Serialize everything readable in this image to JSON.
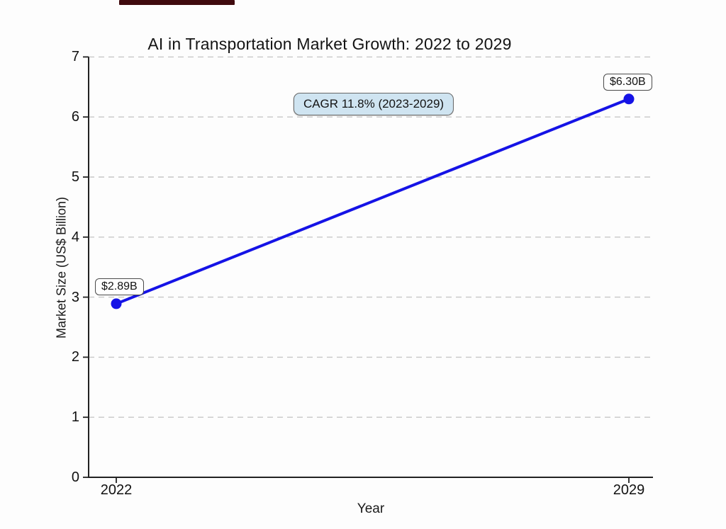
{
  "artifact": {
    "top_bar_color": "#400a0e"
  },
  "chart_data": {
    "type": "line",
    "title": "AI in Transportation Market Growth: 2022 to 2029",
    "xlabel": "Year",
    "ylabel": "Market Size (US$ Billion)",
    "x": [
      2022,
      2029
    ],
    "values": [
      2.89,
      6.3
    ],
    "point_labels": [
      "$2.89B",
      "$6.30B"
    ],
    "x_tick_labels": [
      "2022",
      "2029"
    ],
    "y_ticks": [
      0,
      1,
      2,
      3,
      4,
      5,
      6,
      7
    ],
    "ylim": [
      0,
      7
    ],
    "xlim": [
      2022,
      2029
    ],
    "annotation": {
      "text": "CAGR 11.8% (2023-2029)",
      "bg_color": "#cfe4f1",
      "border_color": "#666666"
    },
    "line_color": "#1513e6",
    "marker_color": "#1513e6",
    "grid": "horizontal-dashed",
    "grid_color": "#c7c7c7",
    "axis_color": "#222222",
    "legend": "none"
  }
}
